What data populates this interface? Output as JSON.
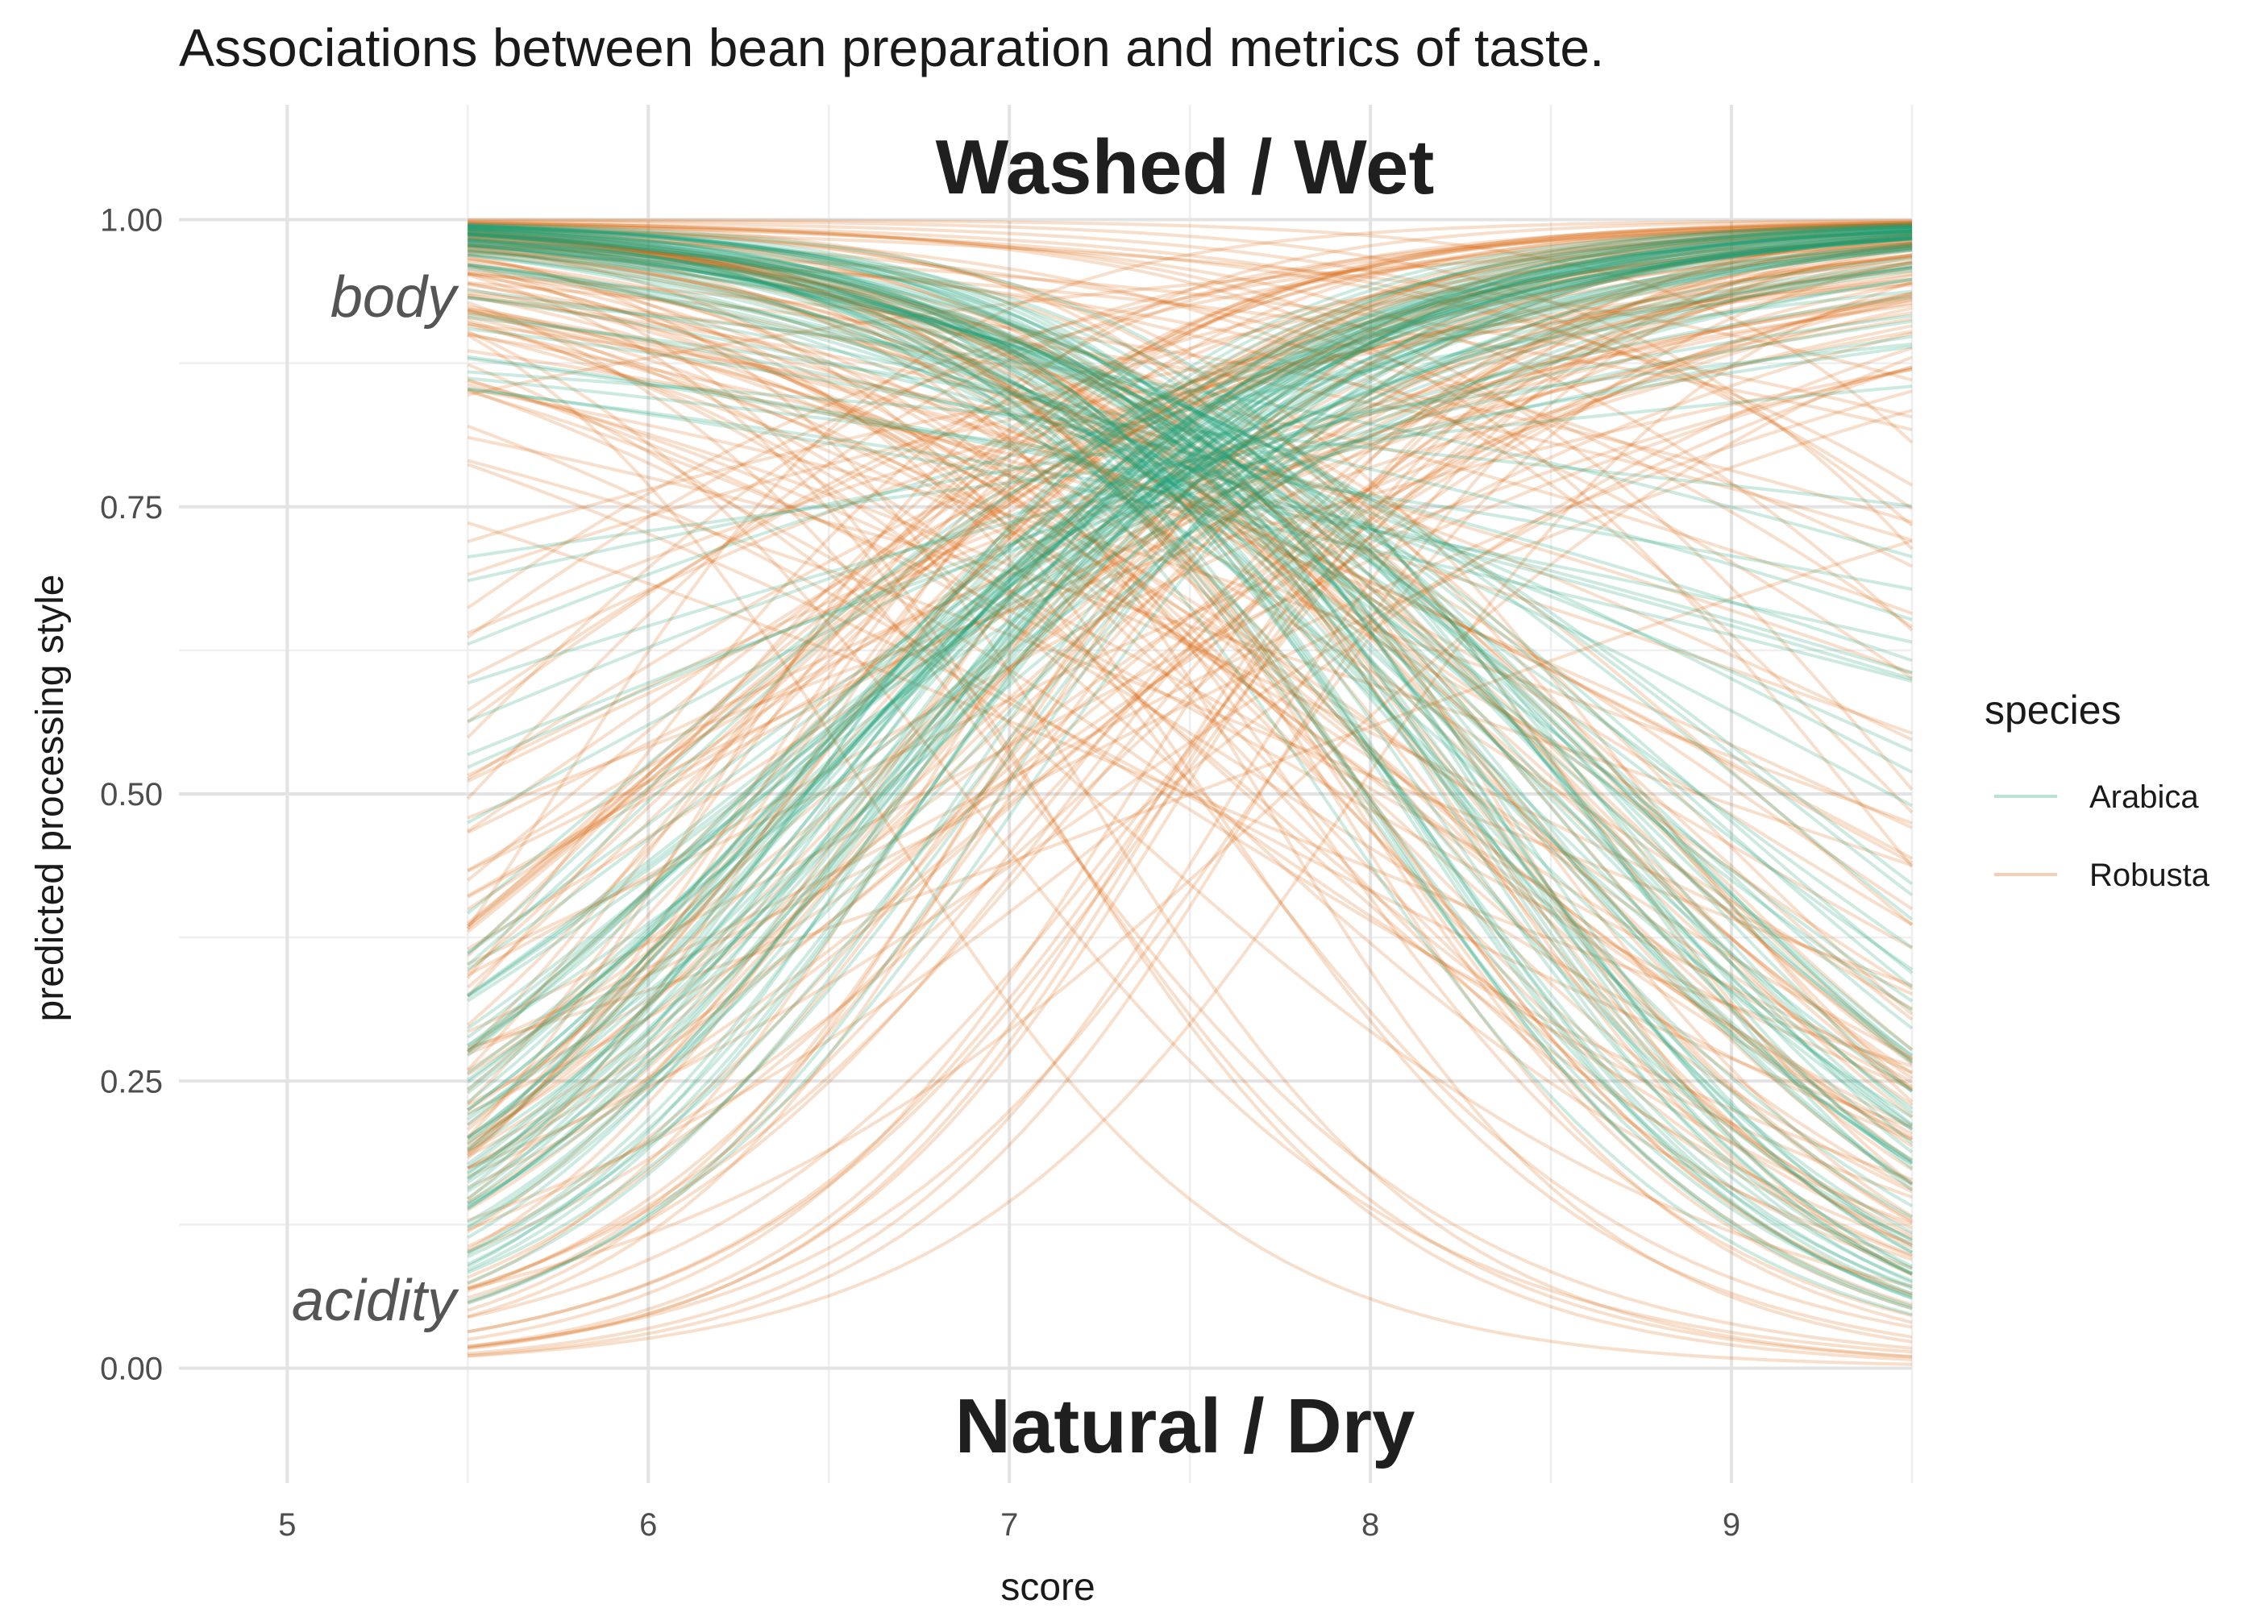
{
  "chart_data": {
    "type": "line",
    "title": "Associations between bean preparation and metrics of taste.",
    "xlabel": "score",
    "ylabel": "predicted processing style",
    "xlim": [
      4.7,
      9.5
    ],
    "ylim": [
      -0.1,
      1.1
    ],
    "x_ticks": [
      5,
      6,
      7,
      8,
      9
    ],
    "x_tick_labels": [
      "5",
      "6",
      "7",
      "8",
      "9"
    ],
    "y_ticks": [
      0,
      0.25,
      0.5,
      0.75,
      1.0
    ],
    "y_tick_labels": [
      "0.00",
      "0.25",
      "0.50",
      "0.75",
      "1.00"
    ],
    "grid": true,
    "x_range_of_curves": [
      5.5,
      9.5
    ],
    "annotations": {
      "top": "Washed / Wet",
      "bottom": "Natural / Dry",
      "upper_curve_label": "body",
      "lower_curve_label": "acidity"
    },
    "legend": {
      "title": "species",
      "position": "right",
      "entries": [
        {
          "name": "Arabica",
          "color": "#1b9e77"
        },
        {
          "name": "Robusta",
          "color": "#d95f02"
        }
      ]
    },
    "series": [
      {
        "name": "Arabica",
        "metric": "body",
        "color": "#1b9e77",
        "curves": 70,
        "center_x": 7.5,
        "center_y": 0.79,
        "slope": -1.4,
        "note": "decreasing logistic curves, one per posterior draw"
      },
      {
        "name": "Arabica",
        "metric": "acidity",
        "color": "#1b9e77",
        "curves": 70,
        "center_x": 7.5,
        "center_y": 0.79,
        "slope": 1.4,
        "note": "increasing logistic curves, one per posterior draw"
      },
      {
        "name": "Robusta",
        "metric": "body",
        "color": "#d95f02",
        "curves": 100,
        "center_x": 7.5,
        "center_y": 0.74,
        "slope": -1.2,
        "note": "decreasing logistic curves with wide spread"
      },
      {
        "name": "Robusta",
        "metric": "acidity",
        "color": "#d95f02",
        "curves": 100,
        "center_x": 7.5,
        "center_y": 0.74,
        "slope": 1.2,
        "note": "increasing logistic curves with wide spread"
      }
    ]
  }
}
